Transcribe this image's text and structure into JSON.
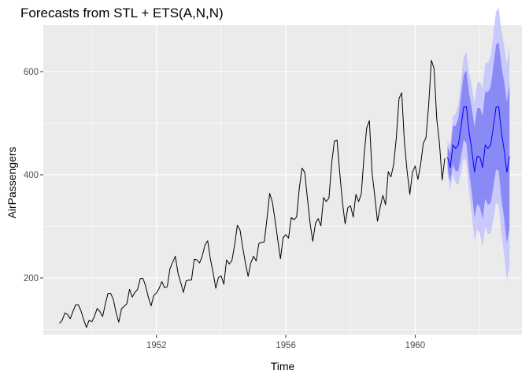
{
  "chart_data": {
    "type": "line",
    "title": "Forecasts from STL +  ETS(A,N,N)",
    "xlabel": "Time",
    "ylabel": "AirPassengers",
    "xlim": [
      1948.5,
      1963.3
    ],
    "ylim": [
      90,
      690
    ],
    "x_ticks": [
      1952,
      1956,
      1960
    ],
    "y_ticks": [
      200,
      400,
      600
    ],
    "grid": true,
    "legend": "none",
    "colors": {
      "panel": "#ebebeb",
      "grid": "#ffffff",
      "observed": "#000000",
      "forecast": "#0000ff",
      "interval80": "#8a8af5",
      "interval95": "#c9c9fb"
    },
    "series": [
      {
        "type": "observed",
        "start": 1949,
        "frequency": 12,
        "values": [
          112,
          118,
          132,
          129,
          121,
          135,
          148,
          148,
          136,
          119,
          104,
          118,
          115,
          126,
          141,
          135,
          125,
          149,
          170,
          170,
          158,
          133,
          114,
          140,
          145,
          150,
          178,
          163,
          172,
          178,
          199,
          199,
          184,
          162,
          146,
          166,
          171,
          180,
          193,
          181,
          183,
          218,
          230,
          242,
          209,
          191,
          172,
          194,
          196,
          196,
          236,
          235,
          229,
          243,
          264,
          272,
          237,
          211,
          180,
          201,
          204,
          188,
          235,
          227,
          234,
          264,
          302,
          293,
          259,
          229,
          203,
          229,
          242,
          233,
          267,
          269,
          270,
          315,
          364,
          347,
          312,
          274,
          237,
          278,
          284,
          277,
          317,
          313,
          318,
          374,
          413,
          405,
          355,
          306,
          271,
          306,
          315,
          301,
          356,
          348,
          355,
          422,
          465,
          467,
          404,
          347,
          305,
          336,
          340,
          318,
          362,
          348,
          363,
          435,
          491,
          505,
          404,
          359,
          310,
          337,
          360,
          342,
          406,
          396,
          420,
          472,
          548,
          559,
          463,
          407,
          362,
          405,
          417,
          391,
          419,
          461,
          472,
          535,
          622,
          606,
          508,
          461,
          390,
          432
        ]
      },
      {
        "type": "forecast",
        "start": 1961,
        "frequency": 12,
        "values": [
          434,
          414,
          458,
          451,
          458,
          493,
          531,
          532,
          482,
          448,
          405,
          436,
          434,
          414,
          458,
          451,
          458,
          493,
          531,
          532,
          482,
          448,
          405,
          436
        ],
        "lo80": [
          413,
          386,
          421,
          407,
          407,
          435,
          467,
          462,
          406,
          366,
          318,
          343,
          338,
          314,
          354,
          342,
          345,
          376,
          410,
          407,
          353,
          315,
          268,
          296
        ],
        "hi80": [
          455,
          442,
          495,
          495,
          509,
          551,
          595,
          602,
          558,
          530,
          492,
          529,
          530,
          514,
          562,
          560,
          571,
          610,
          652,
          657,
          611,
          581,
          542,
          576
        ],
        "lo95": [
          402,
          371,
          401,
          384,
          380,
          404,
          433,
          425,
          366,
          323,
          272,
          294,
          287,
          261,
          299,
          285,
          286,
          314,
          346,
          341,
          285,
          245,
          196,
          222
        ],
        "hi95": [
          466,
          457,
          515,
          518,
          536,
          582,
          629,
          639,
          598,
          573,
          538,
          578,
          581,
          567,
          617,
          617,
          630,
          672,
          716,
          723,
          679,
          651,
          614,
          650
        ]
      }
    ]
  }
}
